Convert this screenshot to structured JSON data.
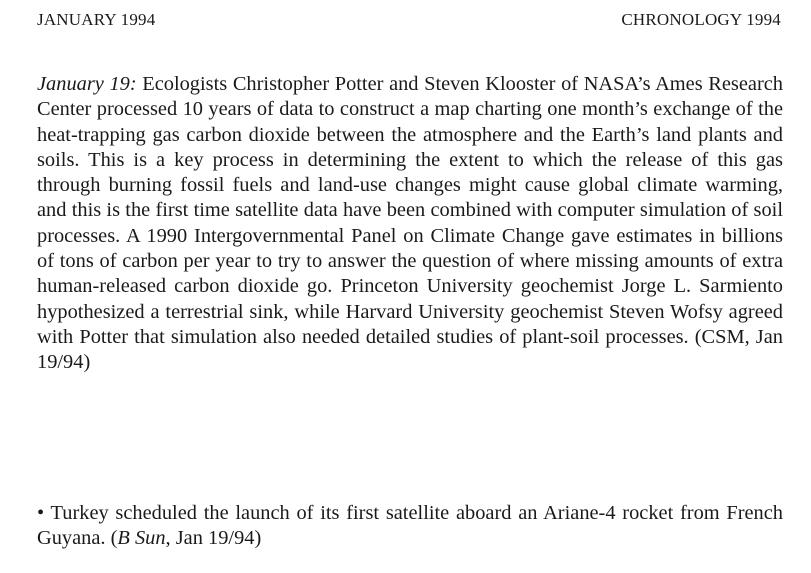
{
  "header": {
    "left": "JANUARY 1994",
    "right": "CHRONOLOGY 1994"
  },
  "entries": [
    {
      "date": "January 19:",
      "text": " Ecologists Christopher Potter and Steven Klooster of NASA’s Ames Research Center processed 10 years of data to construct a map charting one month’s exchange of the heat-trapping gas carbon dioxide between the atmosphere and the Earth’s land plants and soils. This is a key process in deter­mining the extent to which the release of this gas through burning fossil fuels and land-use changes might cause global climate warming, and this is the first time satellite data have been combined with computer simulation of soil processes. A 1990 Intergovernmental Panel on Climate Change gave esti­mates in billions of tons of carbon per year to try to answer the question of where missing amounts of extra human-released carbon dioxide go. Princeton University geochemist Jorge L. Sarmiento hypothesized a terrestrial sink, while Harvard University geochemist Steven Wofsy agreed with Potter that simulation also needed detailed studies of plant-soil processes. (CSM, Jan 19/94)"
    },
    {
      "bullet": "•",
      "text": " Turkey scheduled the launch of its first satellite aboard an Ariane-4 rocket from French Guyana. (",
      "source": "B Sun",
      "source_rest": ", Jan 19/94)"
    }
  ]
}
